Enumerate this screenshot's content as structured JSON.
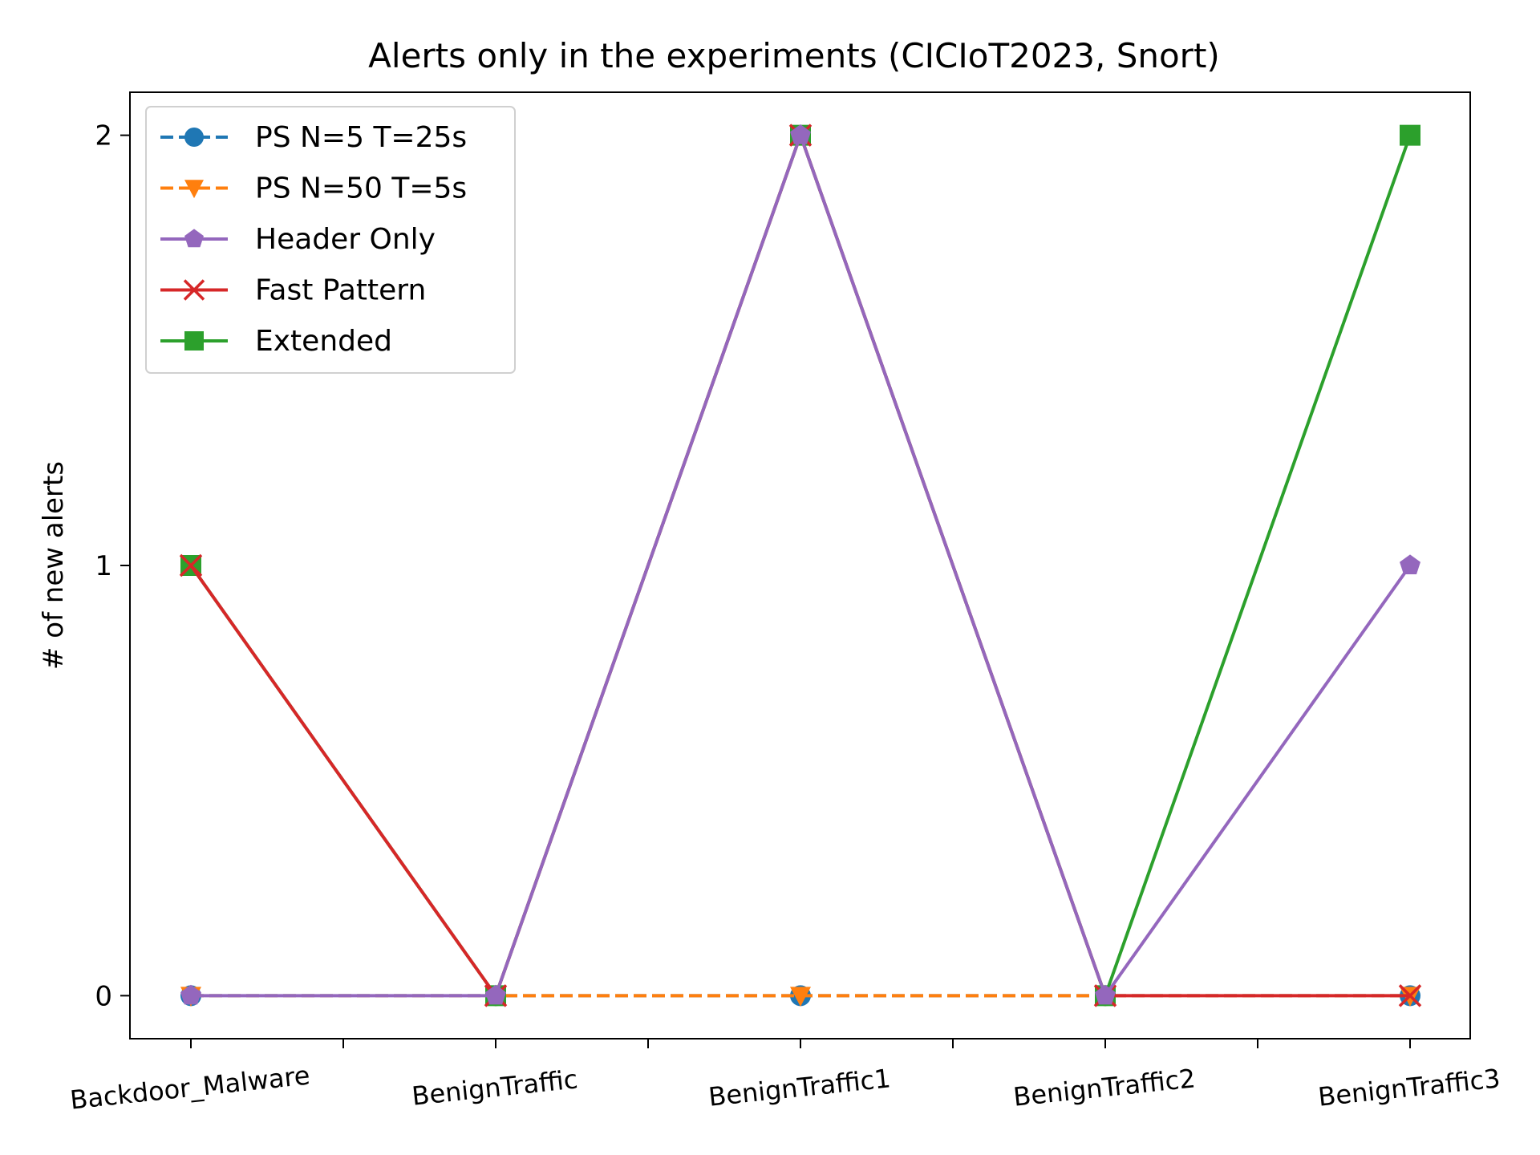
{
  "chart_data": {
    "type": "line",
    "title": "Alerts only in the experiments (CICIoT2023, Snort)",
    "xlabel": "",
    "ylabel": "# of new alerts",
    "categories": [
      "Backdoor_Malware",
      "BenignTraffic",
      "BenignTraffic1",
      "BenignTraffic2",
      "BenignTraffic3"
    ],
    "yticks": [
      "0",
      "1",
      "2"
    ],
    "ylim": [
      -0.1,
      2.1
    ],
    "grid": false,
    "legend_position": "upper-left",
    "series": [
      {
        "name": "PS N=5 T=25s",
        "values": [
          0,
          0,
          0,
          0,
          0
        ],
        "color": "#1f77b4",
        "marker": "circle",
        "linestyle": "dashed"
      },
      {
        "name": "PS N=50 T=5s",
        "values": [
          0,
          0,
          0,
          0,
          0
        ],
        "color": "#ff7f0e",
        "marker": "triangle-down",
        "linestyle": "dashed"
      },
      {
        "name": "Extended",
        "values": [
          1,
          0,
          2,
          0,
          2
        ],
        "color": "#2ca02c",
        "marker": "square",
        "linestyle": "solid"
      },
      {
        "name": "Fast Pattern",
        "values": [
          1,
          0,
          2,
          0,
          0
        ],
        "color": "#d62728",
        "marker": "x",
        "linestyle": "solid"
      },
      {
        "name": "Header Only",
        "values": [
          0,
          0,
          2,
          0,
          1
        ],
        "color": "#9467bd",
        "marker": "pentagon",
        "linestyle": "solid"
      }
    ],
    "legend_order": [
      "PS N=5 T=25s",
      "PS N=50 T=5s",
      "Header Only",
      "Fast Pattern",
      "Extended"
    ]
  }
}
